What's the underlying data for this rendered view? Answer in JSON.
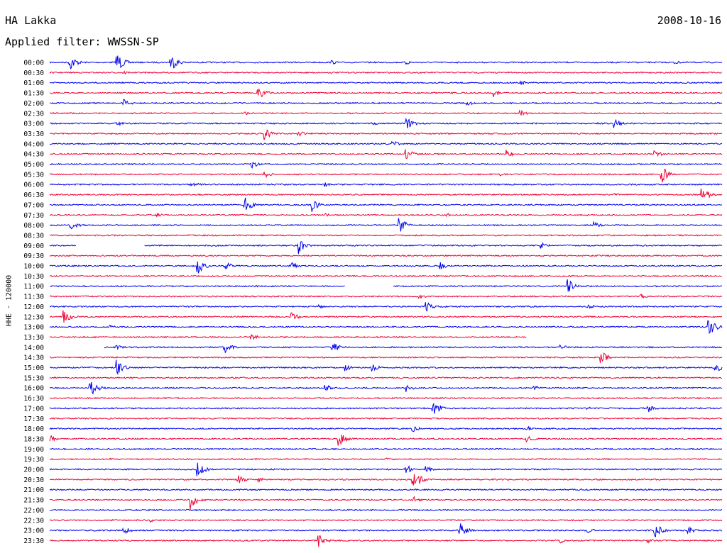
{
  "header": {
    "station": "HA Lakka",
    "date": "2008-10-16",
    "filter": "Applied filter: WWSSN-SP"
  },
  "axis": {
    "channel_label": "HHE - 120000"
  },
  "colors": {
    "odd": "#0000ee",
    "even": "#ee0033",
    "text": "#000000"
  },
  "chart_data": {
    "type": "line",
    "title": "HA Lakka",
    "date": "2008-10-16",
    "filter": "WWSSN-SP",
    "ylabel": "HHE - 120000",
    "row_duration_minutes": 30,
    "color_alternation": [
      "blue",
      "red"
    ],
    "rows": [
      {
        "label": "00:00",
        "events": [
          {
            "t": 0.03,
            "a": 12
          },
          {
            "t": 0.1,
            "a": 15
          },
          {
            "t": 0.18,
            "a": 13
          },
          {
            "t": 0.42,
            "a": 3
          },
          {
            "t": 0.53,
            "a": 4
          },
          {
            "t": 0.93,
            "a": 3
          }
        ]
      },
      {
        "label": "00:30",
        "events": [
          {
            "t": 0.11,
            "a": 3
          }
        ]
      },
      {
        "label": "01:00",
        "events": [
          {
            "t": 0.7,
            "a": 4
          }
        ]
      },
      {
        "label": "01:30",
        "events": [
          {
            "t": 0.31,
            "a": 12
          },
          {
            "t": 0.66,
            "a": 6
          }
        ]
      },
      {
        "label": "02:00",
        "events": [
          {
            "t": 0.11,
            "a": 7
          },
          {
            "t": 0.62,
            "a": 5
          }
        ]
      },
      {
        "label": "02:30",
        "events": [
          {
            "t": 0.29,
            "a": 3
          },
          {
            "t": 0.7,
            "a": 5
          }
        ]
      },
      {
        "label": "03:00",
        "events": [
          {
            "t": 0.1,
            "a": 4
          },
          {
            "t": 0.48,
            "a": 3
          },
          {
            "t": 0.53,
            "a": 11
          },
          {
            "t": 0.84,
            "a": 7
          }
        ]
      },
      {
        "label": "03:30",
        "events": [
          {
            "t": 0.32,
            "a": 9
          },
          {
            "t": 0.37,
            "a": 5
          }
        ]
      },
      {
        "label": "04:00",
        "events": [
          {
            "t": 0.51,
            "a": 5
          }
        ]
      },
      {
        "label": "04:30",
        "events": [
          {
            "t": 0.53,
            "a": 10
          },
          {
            "t": 0.68,
            "a": 6
          },
          {
            "t": 0.9,
            "a": 6
          }
        ]
      },
      {
        "label": "05:00",
        "events": [
          {
            "t": 0.3,
            "a": 6
          }
        ]
      },
      {
        "label": "05:30",
        "events": [
          {
            "t": 0.32,
            "a": 5
          },
          {
            "t": 0.67,
            "a": 3
          },
          {
            "t": 0.91,
            "a": 13
          }
        ]
      },
      {
        "label": "06:00",
        "events": [
          {
            "t": 0.21,
            "a": 6
          },
          {
            "t": 0.41,
            "a": 3
          }
        ]
      },
      {
        "label": "06:30",
        "events": [
          {
            "t": 0.84,
            "a": 3
          },
          {
            "t": 0.97,
            "a": 12
          }
        ]
      },
      {
        "label": "07:00",
        "events": [
          {
            "t": 0.29,
            "a": 12
          },
          {
            "t": 0.39,
            "a": 10
          }
        ]
      },
      {
        "label": "07:30",
        "events": [
          {
            "t": 0.16,
            "a": 3
          },
          {
            "t": 0.41,
            "a": 3
          },
          {
            "t": 0.59,
            "a": 3
          }
        ]
      },
      {
        "label": "08:00",
        "events": [
          {
            "t": 0.03,
            "a": 9
          },
          {
            "t": 0.52,
            "a": 12
          },
          {
            "t": 0.81,
            "a": 6
          }
        ]
      },
      {
        "label": "08:30",
        "events": []
      },
      {
        "label": "09:00",
        "events": [
          {
            "t": 0.37,
            "a": 12
          },
          {
            "t": 0.73,
            "a": 6
          }
        ],
        "gaps": [
          [
            0.04,
            0.14
          ]
        ]
      },
      {
        "label": "09:30",
        "events": []
      },
      {
        "label": "10:00",
        "events": [
          {
            "t": 0.22,
            "a": 13
          },
          {
            "t": 0.26,
            "a": 7
          },
          {
            "t": 0.36,
            "a": 6
          },
          {
            "t": 0.58,
            "a": 6
          }
        ]
      },
      {
        "label": "10:30",
        "events": []
      },
      {
        "label": "11:00",
        "events": [
          {
            "t": 0.77,
            "a": 11
          }
        ],
        "gaps": [
          [
            0.44,
            0.51
          ]
        ]
      },
      {
        "label": "11:30",
        "events": [
          {
            "t": 0.55,
            "a": 4
          },
          {
            "t": 0.88,
            "a": 3
          }
        ]
      },
      {
        "label": "12:00",
        "events": [
          {
            "t": 0.4,
            "a": 3
          },
          {
            "t": 0.56,
            "a": 7
          },
          {
            "t": 0.8,
            "a": 4
          }
        ]
      },
      {
        "label": "12:30",
        "events": [
          {
            "t": 0.02,
            "a": 12
          },
          {
            "t": 0.36,
            "a": 7
          }
        ]
      },
      {
        "label": "13:00",
        "events": [
          {
            "t": 0.98,
            "a": 15
          },
          {
            "t": 0.09,
            "a": 3
          }
        ]
      },
      {
        "label": "13:30",
        "events": [
          {
            "t": 0.3,
            "a": 5
          }
        ],
        "gaps": [
          [
            0.71,
            1.0
          ]
        ]
      },
      {
        "label": "14:00",
        "events": [
          {
            "t": 0.26,
            "a": 9
          },
          {
            "t": 0.42,
            "a": 11
          },
          {
            "t": 0.76,
            "a": 5
          },
          {
            "t": 0.1,
            "a": 4
          }
        ],
        "gaps": [
          [
            0.0,
            0.08
          ]
        ]
      },
      {
        "label": "14:30",
        "events": [
          {
            "t": 0.82,
            "a": 10
          }
        ]
      },
      {
        "label": "15:00",
        "events": [
          {
            "t": 0.1,
            "a": 11
          },
          {
            "t": 0.44,
            "a": 5
          },
          {
            "t": 0.48,
            "a": 6
          },
          {
            "t": 0.99,
            "a": 10
          }
        ]
      },
      {
        "label": "15:30",
        "events": []
      },
      {
        "label": "16:00",
        "events": [
          {
            "t": 0.06,
            "a": 14
          },
          {
            "t": 0.41,
            "a": 5
          },
          {
            "t": 0.53,
            "a": 6
          },
          {
            "t": 0.72,
            "a": 4
          }
        ]
      },
      {
        "label": "16:30",
        "events": []
      },
      {
        "label": "17:00",
        "events": [
          {
            "t": 0.57,
            "a": 13
          },
          {
            "t": 0.8,
            "a": 3
          },
          {
            "t": 0.89,
            "a": 6
          }
        ]
      },
      {
        "label": "17:30",
        "events": []
      },
      {
        "label": "18:00",
        "events": [
          {
            "t": 0.54,
            "a": 5
          },
          {
            "t": 0.71,
            "a": 4
          }
        ]
      },
      {
        "label": "18:30",
        "events": [
          {
            "t": 0.0,
            "a": 6
          },
          {
            "t": 0.43,
            "a": 13
          },
          {
            "t": 0.71,
            "a": 6
          }
        ]
      },
      {
        "label": "19:00",
        "events": []
      },
      {
        "label": "19:30",
        "events": [
          {
            "t": 0.09,
            "a": 2
          },
          {
            "t": 0.5,
            "a": 2
          }
        ]
      },
      {
        "label": "20:00",
        "events": [
          {
            "t": 0.22,
            "a": 12
          },
          {
            "t": 0.53,
            "a": 7
          },
          {
            "t": 0.56,
            "a": 5
          }
        ]
      },
      {
        "label": "20:30",
        "events": [
          {
            "t": 0.28,
            "a": 7
          },
          {
            "t": 0.31,
            "a": 4
          },
          {
            "t": 0.54,
            "a": 11
          },
          {
            "t": 0.55,
            "a": 6
          }
        ]
      },
      {
        "label": "21:00",
        "events": []
      },
      {
        "label": "21:30",
        "events": [
          {
            "t": 0.21,
            "a": 14
          },
          {
            "t": 0.54,
            "a": 6
          }
        ]
      },
      {
        "label": "22:00",
        "events": []
      },
      {
        "label": "22:30",
        "events": [
          {
            "t": 0.15,
            "a": 3
          }
        ]
      },
      {
        "label": "23:00",
        "events": [
          {
            "t": 0.11,
            "a": 6
          },
          {
            "t": 0.61,
            "a": 13
          },
          {
            "t": 0.8,
            "a": 5
          },
          {
            "t": 0.9,
            "a": 12
          },
          {
            "t": 0.95,
            "a": 6
          }
        ]
      },
      {
        "label": "23:30",
        "events": [
          {
            "t": 0.4,
            "a": 12
          },
          {
            "t": 0.76,
            "a": 4
          },
          {
            "t": 0.89,
            "a": 4
          }
        ]
      }
    ]
  }
}
